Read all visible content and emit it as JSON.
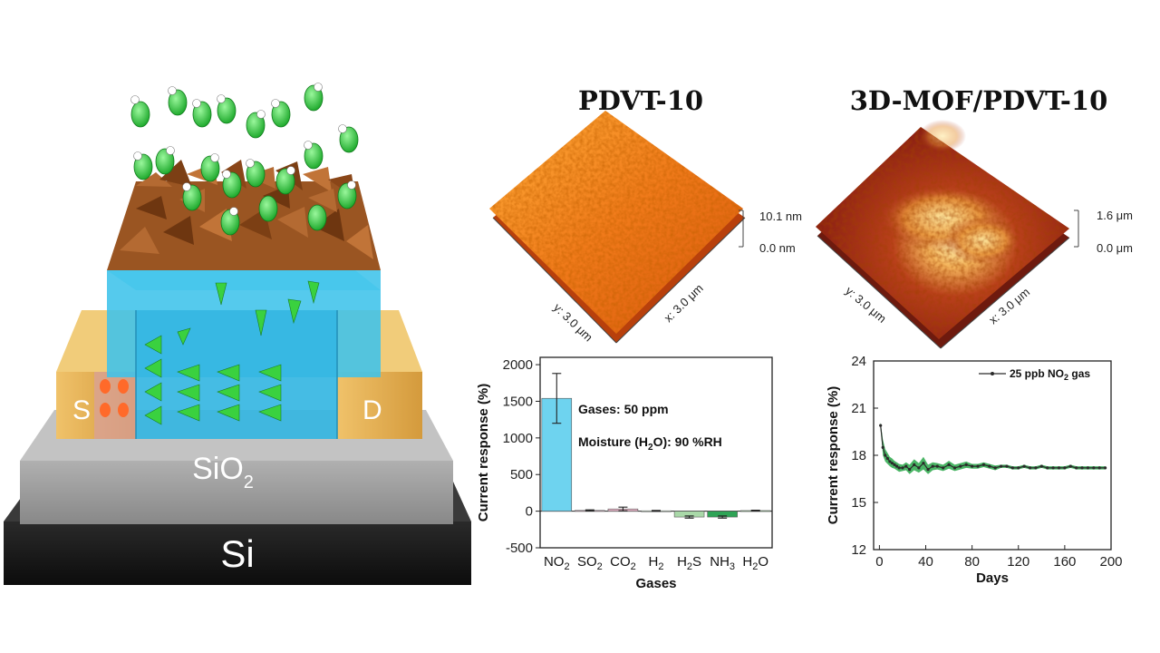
{
  "device": {
    "source_label": "S",
    "drain_label": "D",
    "oxide_label_main": "SiO",
    "oxide_label_sub": "2",
    "substrate_label": "Si",
    "colors": {
      "mof_crystal": "#8b4a1c",
      "channel": "#38bde6",
      "electrode": "#e0a94a",
      "gas": "#2fd13b",
      "oxide": "#9a9a9a",
      "substrate": "#1c1c1c"
    }
  },
  "afm": [
    {
      "title": "PDVT-10",
      "z_max": "10.1 nm",
      "z_min": "0.0 nm",
      "y_axis": "y: 3.0 μm",
      "x_axis": "x: 3.0 μm"
    },
    {
      "title": "3D-MOF/PDVT-10",
      "z_max": "1.6 μm",
      "z_min": "0.0 μm",
      "y_axis": "y: 3.0 μm",
      "x_axis": "x: 3.0 μm"
    }
  ],
  "chart_data": [
    {
      "type": "bar",
      "xlabel": "Gases",
      "ylabel": "Current response (%)",
      "ylim": [
        -500,
        2100
      ],
      "yticks": [
        -500,
        0,
        500,
        1000,
        1500,
        2000
      ],
      "categories": [
        {
          "main": "NO",
          "sub": "2",
          "tail": ""
        },
        {
          "main": "SO",
          "sub": "2",
          "tail": ""
        },
        {
          "main": "CO",
          "sub": "2",
          "tail": ""
        },
        {
          "main": "H",
          "sub": "2",
          "tail": ""
        },
        {
          "main": "H",
          "sub": "2",
          "tail": "S"
        },
        {
          "main": "NH",
          "sub": "3",
          "tail": ""
        },
        {
          "main": "H",
          "sub": "2",
          "tail": "O"
        }
      ],
      "values": [
        1540,
        10,
        30,
        5,
        -80,
        -80,
        8
      ],
      "errors": [
        340,
        8,
        25,
        5,
        15,
        15,
        5
      ],
      "colors": [
        "#6ed3ef",
        "#d8a9c0",
        "#e9b7c9",
        "#d2ead2",
        "#a9d8a8",
        "#2fa456",
        "#9fd3a0"
      ],
      "annotation_1": "Gases: 50 ppm",
      "annotation_2_pre": "Moisture (H",
      "annotation_2_sub": "2",
      "annotation_2_post": "O): 90 %RH",
      "grid": false
    },
    {
      "type": "line",
      "xlabel": "Days",
      "ylabel": "Current response (%)",
      "xlim": [
        -5,
        200
      ],
      "ylim": [
        12,
        24
      ],
      "xticks": [
        0,
        40,
        80,
        120,
        160,
        200
      ],
      "yticks": [
        12,
        15,
        18,
        21,
        24
      ],
      "legend_pre": "25 ppb NO",
      "legend_sub": "2",
      "legend_post": " gas",
      "legend_position": "top-right",
      "x": [
        1,
        3,
        5,
        7,
        9,
        11,
        13,
        15,
        17,
        20,
        23,
        26,
        30,
        34,
        38,
        42,
        46,
        50,
        55,
        60,
        65,
        70,
        75,
        80,
        85,
        90,
        95,
        100,
        105,
        110,
        115,
        120,
        125,
        130,
        135,
        140,
        145,
        150,
        155,
        160,
        165,
        170,
        175,
        180,
        185,
        190,
        195
      ],
      "values": [
        19.9,
        18.5,
        18.0,
        17.8,
        17.6,
        17.5,
        17.4,
        17.3,
        17.2,
        17.2,
        17.3,
        17.1,
        17.4,
        17.2,
        17.5,
        17.1,
        17.3,
        17.3,
        17.2,
        17.4,
        17.2,
        17.3,
        17.4,
        17.3,
        17.3,
        17.4,
        17.3,
        17.2,
        17.3,
        17.3,
        17.2,
        17.2,
        17.3,
        17.2,
        17.2,
        17.3,
        17.2,
        17.2,
        17.2,
        17.2,
        17.3,
        17.2,
        17.2,
        17.2,
        17.2,
        17.2,
        17.2
      ],
      "band": [
        0.2,
        0.5,
        0.4,
        0.35,
        0.3,
        0.3,
        0.25,
        0.25,
        0.25,
        0.2,
        0.25,
        0.3,
        0.35,
        0.3,
        0.4,
        0.3,
        0.25,
        0.2,
        0.2,
        0.25,
        0.2,
        0.2,
        0.2,
        0.15,
        0.15,
        0.15,
        0.15,
        0.15,
        0.1,
        0.1,
        0.1,
        0.1,
        0.1,
        0.1,
        0.1,
        0.1,
        0.1,
        0.1,
        0.1,
        0.1,
        0.1,
        0.1,
        0.1,
        0.1,
        0.1,
        0.1,
        0.1
      ],
      "line_color": "#2a2a2a",
      "band_color": "#2aa84a",
      "grid": false
    }
  ]
}
